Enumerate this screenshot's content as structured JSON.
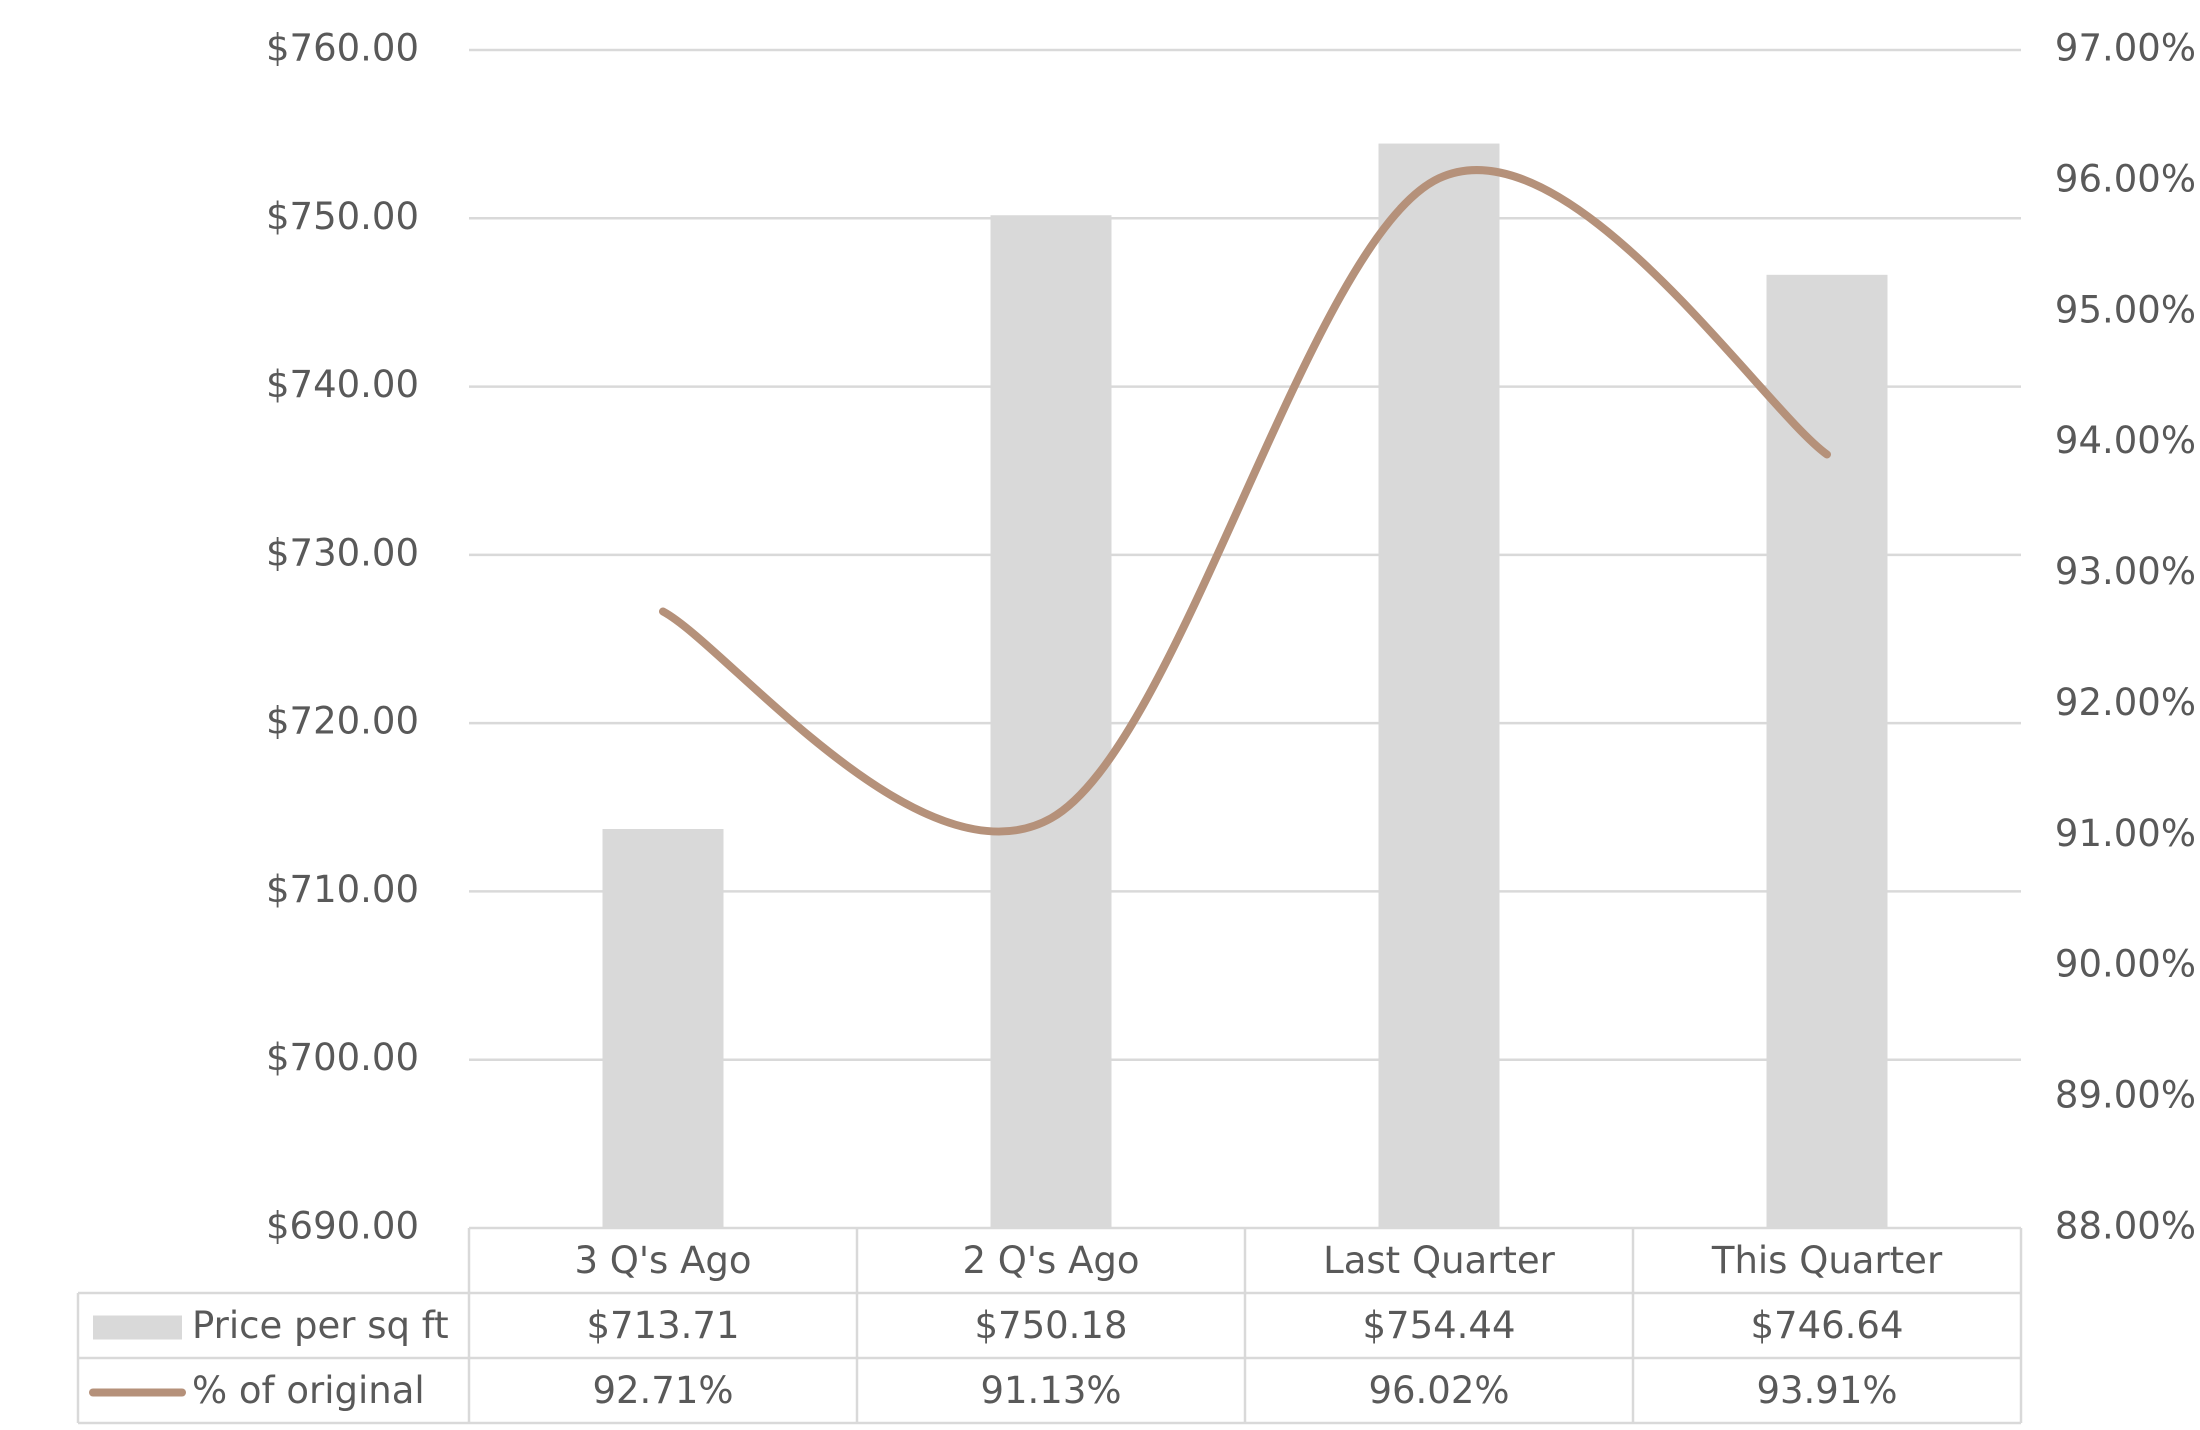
{
  "chart_data": {
    "type": "combo",
    "categories": [
      "3 Q's Ago",
      "2 Q's Ago",
      "Last Quarter",
      "This Quarter"
    ],
    "series": [
      {
        "name": "Price per sq ft",
        "type": "bar",
        "color": "#d9d9d9",
        "values": [
          713.71,
          750.18,
          754.44,
          746.64
        ],
        "value_labels": [
          "$713.71",
          "$750.18",
          "$754.44",
          "$746.64"
        ]
      },
      {
        "name": "% of original",
        "type": "line",
        "color": "#b5917a",
        "axis": "y2",
        "values": [
          92.71,
          91.13,
          96.02,
          93.91
        ],
        "value_labels": [
          "92.71%",
          "91.13%",
          "96.02%",
          "93.91%"
        ]
      }
    ],
    "ylim": [
      690,
      760
    ],
    "yticks": [
      {
        "value": 690,
        "label": "$690.00"
      },
      {
        "value": 700,
        "label": "$700.00"
      },
      {
        "value": 710,
        "label": "$710.00"
      },
      {
        "value": 720,
        "label": "$720.00"
      },
      {
        "value": 730,
        "label": "$730.00"
      },
      {
        "value": 740,
        "label": "$740.00"
      },
      {
        "value": 750,
        "label": "$750.00"
      },
      {
        "value": 760,
        "label": "$760.00"
      }
    ],
    "y2lim": [
      88,
      97
    ],
    "y2ticks": [
      {
        "value": 88,
        "label": "88.00%"
      },
      {
        "value": 89,
        "label": "89.00%"
      },
      {
        "value": 90,
        "label": "90.00%"
      },
      {
        "value": 91,
        "label": "91.00%"
      },
      {
        "value": 92,
        "label": "92.00%"
      },
      {
        "value": 93,
        "label": "93.00%"
      },
      {
        "value": 94,
        "label": "94.00%"
      },
      {
        "value": 95,
        "label": "95.00%"
      },
      {
        "value": 96,
        "label": "96.00%"
      },
      {
        "value": 97,
        "label": "97.00%"
      }
    ],
    "grid": true
  }
}
